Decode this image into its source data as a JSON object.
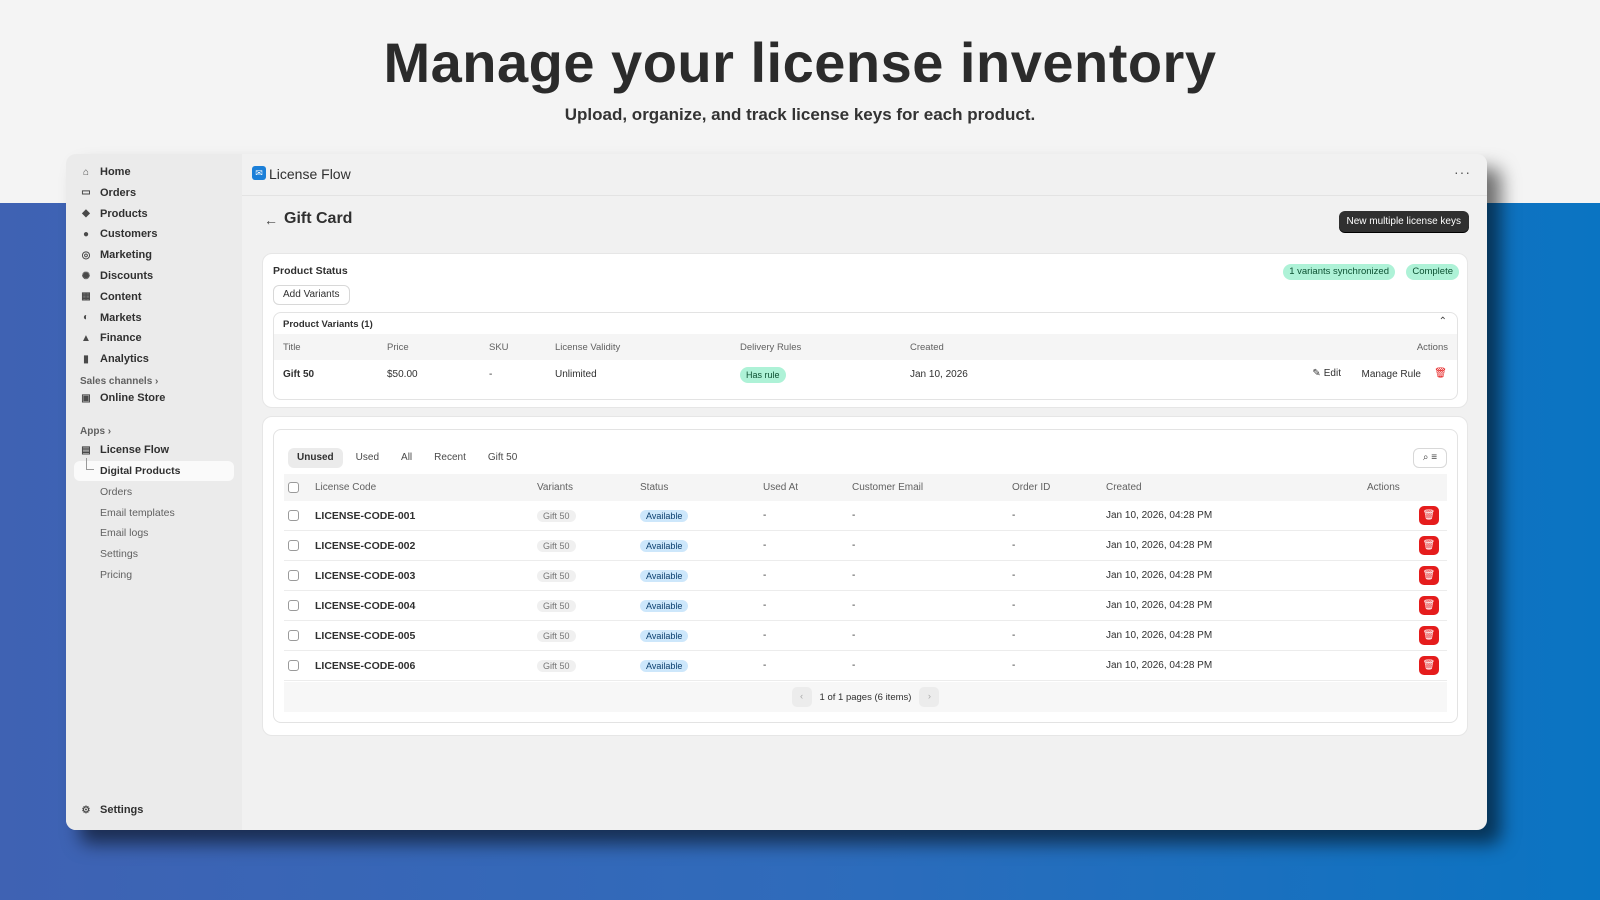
{
  "hero": {
    "title": "Manage your license inventory",
    "subtitle": "Upload, organize, and track license keys for each product."
  },
  "colors": {
    "accent": "#1b7fd8",
    "danger": "#e51c1c",
    "success_bg": "#aef2d7",
    "info_bg": "#cde7fb",
    "primary_button": "#303030"
  },
  "sidebar": {
    "items": [
      {
        "label": "Home",
        "icon": "home-icon"
      },
      {
        "label": "Orders",
        "icon": "inbox-icon"
      },
      {
        "label": "Products",
        "icon": "tag-icon"
      },
      {
        "label": "Customers",
        "icon": "person-icon"
      },
      {
        "label": "Marketing",
        "icon": "target-icon"
      },
      {
        "label": "Discounts",
        "icon": "discount-icon"
      },
      {
        "label": "Content",
        "icon": "content-icon"
      },
      {
        "label": "Markets",
        "icon": "globe-icon"
      },
      {
        "label": "Finance",
        "icon": "bank-icon"
      },
      {
        "label": "Analytics",
        "icon": "bar-chart-icon"
      }
    ],
    "sales_channels": "Sales channels ›",
    "online_store": "Online Store",
    "apps": "Apps ›",
    "app": "License Flow",
    "app_sub": [
      "Digital Products",
      "Orders",
      "Email templates",
      "Email logs",
      "Settings",
      "Pricing"
    ],
    "settings": "Settings"
  },
  "topbar": {
    "app_name": "License Flow",
    "more": "···"
  },
  "page": {
    "title": "Gift Card",
    "primary_action": "New multiple license keys"
  },
  "product_status": {
    "title": "Product Status",
    "add_variants": "Add Variants",
    "badges": [
      "1 variants synchronized",
      "Complete"
    ],
    "variants_title": "Product Variants (1)",
    "columns": [
      "Title",
      "Price",
      "SKU",
      "License Validity",
      "Delivery Rules",
      "Created",
      "Actions"
    ],
    "rows": [
      {
        "title": "Gift 50",
        "price": "$50.00",
        "sku": "-",
        "validity": "Unlimited",
        "rule": "Has rule",
        "created": "Jan 10, 2026",
        "edit": "Edit",
        "manage": "Manage Rule"
      }
    ]
  },
  "licenses": {
    "tabs": [
      "Unused",
      "Used",
      "All",
      "Recent",
      "Gift 50"
    ],
    "active_tab": "Unused",
    "columns": [
      "License Code",
      "Variants",
      "Status",
      "Used At",
      "Customer Email",
      "Order ID",
      "Created",
      "Actions"
    ],
    "rows": [
      {
        "code": "LICENSE-CODE-001",
        "variant": "Gift 50",
        "status": "Available",
        "used_at": "-",
        "email": "-",
        "order": "-",
        "created": "Jan 10, 2026, 04:28 PM"
      },
      {
        "code": "LICENSE-CODE-002",
        "variant": "Gift 50",
        "status": "Available",
        "used_at": "-",
        "email": "-",
        "order": "-",
        "created": "Jan 10, 2026, 04:28 PM"
      },
      {
        "code": "LICENSE-CODE-003",
        "variant": "Gift 50",
        "status": "Available",
        "used_at": "-",
        "email": "-",
        "order": "-",
        "created": "Jan 10, 2026, 04:28 PM"
      },
      {
        "code": "LICENSE-CODE-004",
        "variant": "Gift 50",
        "status": "Available",
        "used_at": "-",
        "email": "-",
        "order": "-",
        "created": "Jan 10, 2026, 04:28 PM"
      },
      {
        "code": "LICENSE-CODE-005",
        "variant": "Gift 50",
        "status": "Available",
        "used_at": "-",
        "email": "-",
        "order": "-",
        "created": "Jan 10, 2026, 04:28 PM"
      },
      {
        "code": "LICENSE-CODE-006",
        "variant": "Gift 50",
        "status": "Available",
        "used_at": "-",
        "email": "-",
        "order": "-",
        "created": "Jan 10, 2026, 04:28 PM"
      }
    ],
    "pagination": "1 of 1 pages (6 items)"
  }
}
